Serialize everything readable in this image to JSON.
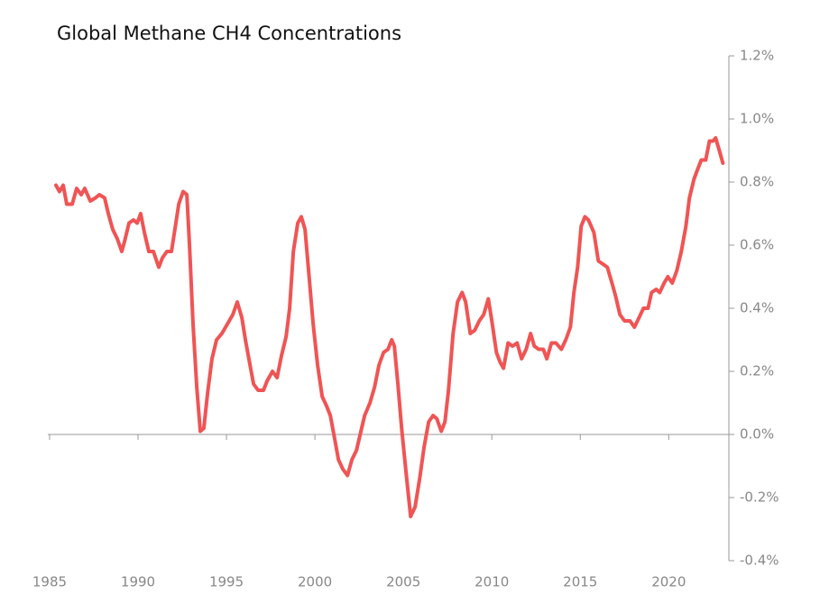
{
  "chart_data": {
    "type": "line",
    "title": "Global Methane CH4 Concentrations",
    "x": [
      1985.36,
      1985.56,
      1985.77,
      1985.97,
      1986.28,
      1986.53,
      1986.79,
      1986.99,
      1987.3,
      1987.6,
      1987.81,
      1988.11,
      1988.32,
      1988.57,
      1988.83,
      1989.08,
      1989.23,
      1989.49,
      1989.74,
      1989.95,
      1990.15,
      1990.36,
      1990.61,
      1990.87,
      1991.17,
      1991.38,
      1991.63,
      1991.89,
      1992.14,
      1992.3,
      1992.55,
      1992.76,
      1992.91,
      1993.11,
      1993.32,
      1993.52,
      1993.72,
      1993.93,
      1994.18,
      1994.44,
      1994.74,
      1995.05,
      1995.36,
      1995.61,
      1995.87,
      1996.07,
      1996.33,
      1996.53,
      1996.79,
      1997.09,
      1997.3,
      1997.6,
      1997.86,
      1998.11,
      1998.37,
      1998.57,
      1998.78,
      1999.03,
      1999.23,
      1999.44,
      1999.64,
      1999.9,
      2000.15,
      2000.41,
      2000.66,
      2000.87,
      2001.07,
      2001.33,
      2001.58,
      2001.84,
      2002.09,
      2002.35,
      2002.6,
      2002.81,
      2003.11,
      2003.37,
      2003.62,
      2003.88,
      2004.13,
      2004.34,
      2004.49,
      2004.69,
      2004.9,
      2005.15,
      2005.41,
      2005.66,
      2005.92,
      2006.17,
      2006.43,
      2006.68,
      2006.89,
      2007.14,
      2007.35,
      2007.55,
      2007.81,
      2008.06,
      2008.32,
      2008.52,
      2008.78,
      2009.03,
      2009.29,
      2009.54,
      2009.8,
      2010.0,
      2010.26,
      2010.46,
      2010.66,
      2010.92,
      2011.17,
      2011.43,
      2011.68,
      2011.94,
      2012.19,
      2012.4,
      2012.65,
      2012.91,
      2013.11,
      2013.37,
      2013.62,
      2013.93,
      2014.18,
      2014.44,
      2014.64,
      2014.85,
      2015.05,
      2015.26,
      2015.46,
      2015.77,
      2016.02,
      2016.28,
      2016.53,
      2016.79,
      2016.99,
      2017.24,
      2017.5,
      2017.81,
      2018.06,
      2018.32,
      2018.57,
      2018.83,
      2019.03,
      2019.29,
      2019.49,
      2019.74,
      2019.95,
      2020.2,
      2020.46,
      2020.71,
      2020.97,
      2021.17,
      2021.43,
      2021.63,
      2021.84,
      2022.09,
      2022.3,
      2022.5,
      2022.65,
      2022.86,
      2023.06
    ],
    "series": [
      {
        "color": "#f05454",
        "values": [
          0.79,
          0.77,
          0.79,
          0.73,
          0.73,
          0.78,
          0.76,
          0.78,
          0.74,
          0.75,
          0.76,
          0.75,
          0.7,
          0.65,
          0.62,
          0.58,
          0.61,
          0.67,
          0.68,
          0.67,
          0.7,
          0.64,
          0.58,
          0.58,
          0.53,
          0.56,
          0.58,
          0.58,
          0.67,
          0.73,
          0.77,
          0.76,
          0.6,
          0.35,
          0.15,
          0.01,
          0.02,
          0.13,
          0.24,
          0.3,
          0.32,
          0.35,
          0.38,
          0.42,
          0.37,
          0.3,
          0.22,
          0.16,
          0.14,
          0.14,
          0.17,
          0.2,
          0.18,
          0.25,
          0.31,
          0.4,
          0.58,
          0.67,
          0.69,
          0.65,
          0.52,
          0.35,
          0.22,
          0.12,
          0.09,
          0.06,
          0.0,
          -0.08,
          -0.11,
          -0.13,
          -0.08,
          -0.05,
          0.01,
          0.06,
          0.1,
          0.15,
          0.22,
          0.26,
          0.27,
          0.3,
          0.28,
          0.16,
          0.02,
          -0.12,
          -0.26,
          -0.23,
          -0.14,
          -0.04,
          0.04,
          0.06,
          0.05,
          0.01,
          0.04,
          0.14,
          0.32,
          0.42,
          0.45,
          0.42,
          0.32,
          0.33,
          0.36,
          0.38,
          0.43,
          0.36,
          0.26,
          0.23,
          0.21,
          0.29,
          0.28,
          0.29,
          0.24,
          0.27,
          0.32,
          0.28,
          0.27,
          0.27,
          0.24,
          0.29,
          0.29,
          0.27,
          0.3,
          0.34,
          0.45,
          0.53,
          0.66,
          0.69,
          0.68,
          0.64,
          0.55,
          0.54,
          0.53,
          0.48,
          0.44,
          0.38,
          0.36,
          0.36,
          0.34,
          0.37,
          0.4,
          0.4,
          0.45,
          0.46,
          0.45,
          0.48,
          0.5,
          0.48,
          0.52,
          0.58,
          0.66,
          0.75,
          0.81,
          0.84,
          0.87,
          0.87,
          0.93,
          0.93,
          0.94,
          0.9,
          0.86
        ]
      }
    ],
    "xlim": [
      1984.9,
      2023.4
    ],
    "xticks": [
      1985,
      1990,
      1995,
      2000,
      2005,
      2010,
      2015,
      2020
    ],
    "ylim": [
      -0.4,
      1.2
    ],
    "yticks": [
      {
        "value": -0.4,
        "label": "-0.4%"
      },
      {
        "value": -0.2,
        "label": "-0.2%"
      },
      {
        "value": 0,
        "label": "0.0%"
      },
      {
        "value": 0.2,
        "label": "0.2%"
      },
      {
        "value": 0.4,
        "label": "0.4%"
      },
      {
        "value": 0.6,
        "label": "0.6%"
      },
      {
        "value": 0.8,
        "label": "0.8%"
      },
      {
        "value": 1.0,
        "label": "1.0%"
      },
      {
        "value": 1.2,
        "label": "1.2%"
      }
    ]
  }
}
